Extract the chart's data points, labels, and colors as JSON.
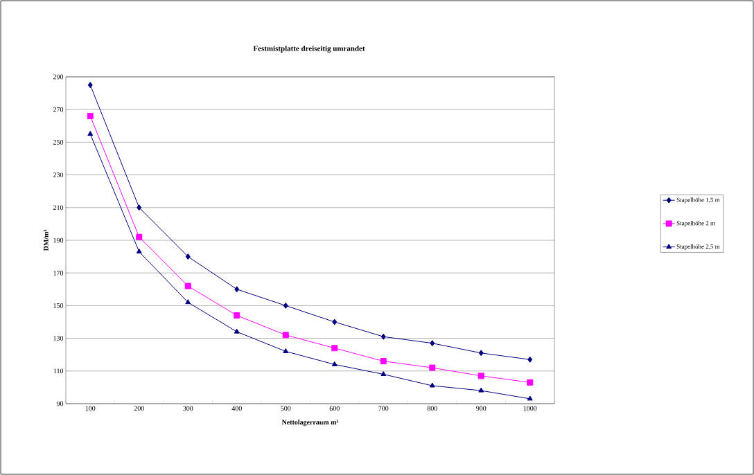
{
  "chart_data": {
    "type": "line",
    "title": "Festmistplatte dreiseitig umrandet",
    "xlabel": "Nettolagerraum m³",
    "ylabel": "DM/m³",
    "categories": [
      "100",
      "200",
      "300",
      "400",
      "500",
      "600",
      "700",
      "800",
      "900",
      "1000"
    ],
    "series": [
      {
        "name": "Stapelhöhe 1,5 m",
        "color": "#000080",
        "marker": "diamond",
        "values": [
          285,
          210,
          180,
          160,
          150,
          140,
          131,
          127,
          121,
          117
        ]
      },
      {
        "name": "Stapelhöhe 2 m",
        "color": "#ff00ff",
        "marker": "square",
        "values": [
          266,
          192,
          162,
          144,
          132,
          124,
          116,
          112,
          107,
          103
        ]
      },
      {
        "name": "Stapelhöhe 2,5 m",
        "color": "#000080",
        "marker": "triangle",
        "values": [
          255,
          183,
          152,
          134,
          122,
          114,
          108,
          101,
          98,
          93
        ]
      }
    ],
    "ylim": [
      90,
      290
    ],
    "yticks": [
      90,
      110,
      130,
      150,
      170,
      190,
      210,
      230,
      250,
      270,
      290
    ],
    "grid": "y",
    "legend": "right",
    "line_style": "solid"
  }
}
